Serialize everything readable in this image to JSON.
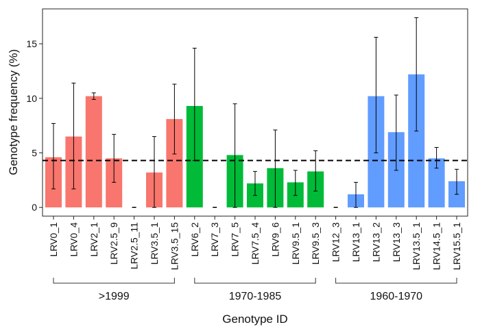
{
  "chart_data": {
    "type": "bar",
    "xlabel": "Genotype ID",
    "ylabel": "Genotype frequency (%)",
    "ylim": [
      -0.8,
      18.2
    ],
    "yticks": [
      0,
      5,
      10,
      15
    ],
    "grid": false,
    "reference_line": 4.3,
    "groups": [
      {
        "label": ">1999",
        "color": "#F8766D",
        "start": 0,
        "end": 6
      },
      {
        "label": "1970-1985",
        "color": "#00BA38",
        "start": 7,
        "end": 13
      },
      {
        "label": "1960-1970",
        "color": "#619CFF",
        "start": 14,
        "end": 20
      }
    ],
    "categories": [
      "LRV0_1",
      "LRV0_4",
      "LRV2_1",
      "LRV2.5_9",
      "LRV2.5_11",
      "LRV3.5_1",
      "LRV3.5_15",
      "LRV6_2",
      "LRV7_3",
      "LRV7_5",
      "LRV7.5_4",
      "LRV9_6",
      "LRV9.5_1",
      "LRV9.5_3",
      "LRV12_3",
      "LRV13_1",
      "LRV13_2",
      "LRV13_3",
      "LRV13.5_1",
      "LRV14.5_1",
      "LRV15.5_1"
    ],
    "values": [
      4.6,
      6.5,
      10.2,
      4.5,
      0,
      3.2,
      8.1,
      9.3,
      0,
      4.8,
      2.2,
      3.6,
      2.3,
      3.3,
      0,
      1.2,
      10.2,
      6.9,
      12.2,
      4.5,
      2.4
    ],
    "error_low": [
      1.7,
      1.7,
      9.9,
      2.3,
      0,
      0.0,
      4.9,
      4.3,
      0,
      0.0,
      1.1,
      0.0,
      1.1,
      1.5,
      0,
      0.0,
      5.0,
      3.4,
      7.0,
      3.6,
      1.2
    ],
    "error_high": [
      7.7,
      11.4,
      10.5,
      6.7,
      0,
      6.5,
      11.3,
      14.6,
      0,
      9.5,
      3.3,
      7.1,
      3.4,
      5.2,
      0,
      2.3,
      15.6,
      10.3,
      17.4,
      5.5,
      3.5
    ]
  }
}
